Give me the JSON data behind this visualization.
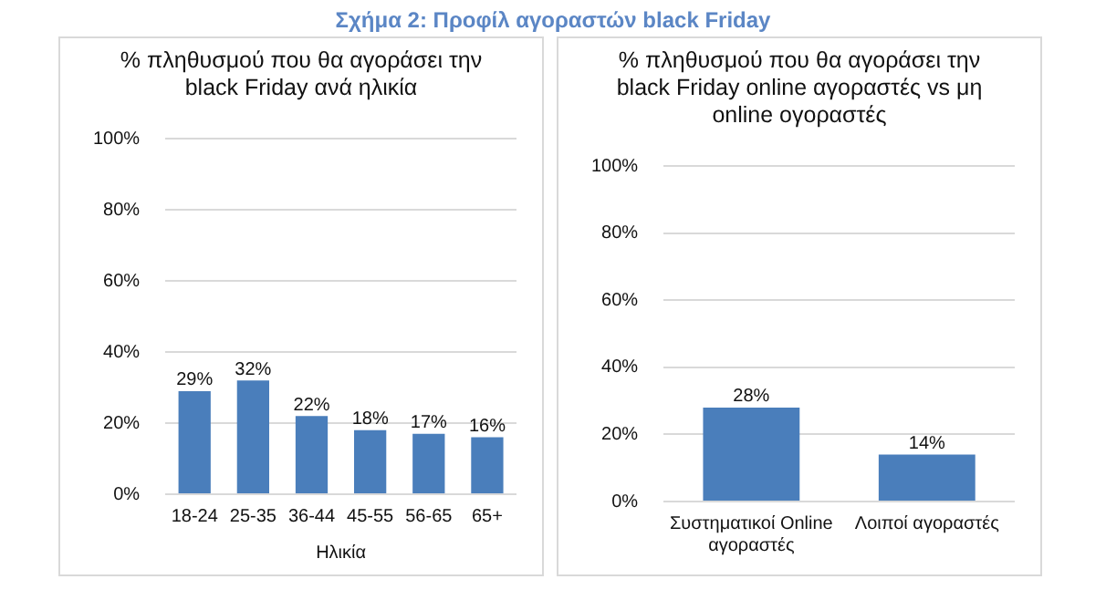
{
  "chart_data": [
    {
      "type": "bar",
      "title": "% πληθυσμού που θα αγοράσει την black Friday ανά ηλικία",
      "xlabel": "Ηλικία",
      "annotations": [
        "Σχήμα 2: Προφίλ αγοραστών black Friday"
      ],
      "categories": [
        "18-24",
        "25-35",
        "36-44",
        "45-55",
        "56-65",
        "65+"
      ],
      "values": [
        29,
        32,
        22,
        18,
        17,
        16
      ],
      "color": "#4a7ebb",
      "value_labels": [
        "29%",
        "32%",
        "22%",
        "18%",
        "17%",
        "16%"
      ],
      "ylim": [
        0,
        100
      ],
      "yticks": [
        {
          "value": 0,
          "label": "0%"
        },
        {
          "value": 20,
          "label": "20%"
        },
        {
          "value": 40,
          "label": "40%"
        },
        {
          "value": 60,
          "label": "60%"
        },
        {
          "value": 80,
          "label": "80%"
        },
        {
          "value": 100,
          "label": "100%"
        }
      ],
      "grid": "y",
      "legend": false
    },
    {
      "type": "bar",
      "title": "% πληθυσμού που θα αγοράσει την black Friday online αγοραστές vs μη online ογοραστές",
      "categories": [
        "Συστηματικοί Online αγοραστές",
        "Λοιποί αγοραστές"
      ],
      "values": [
        28,
        14
      ],
      "color": "#4a7ebb",
      "value_labels": [
        "28%",
        "14%"
      ],
      "ylim": [
        0,
        100
      ],
      "yticks": [
        {
          "value": 0,
          "label": "0%"
        },
        {
          "value": 20,
          "label": "20%"
        },
        {
          "value": 40,
          "label": "40%"
        },
        {
          "value": 60,
          "label": "60%"
        },
        {
          "value": 80,
          "label": "80%"
        },
        {
          "value": 100,
          "label": "100%"
        }
      ],
      "grid": "y",
      "legend": false
    }
  ]
}
